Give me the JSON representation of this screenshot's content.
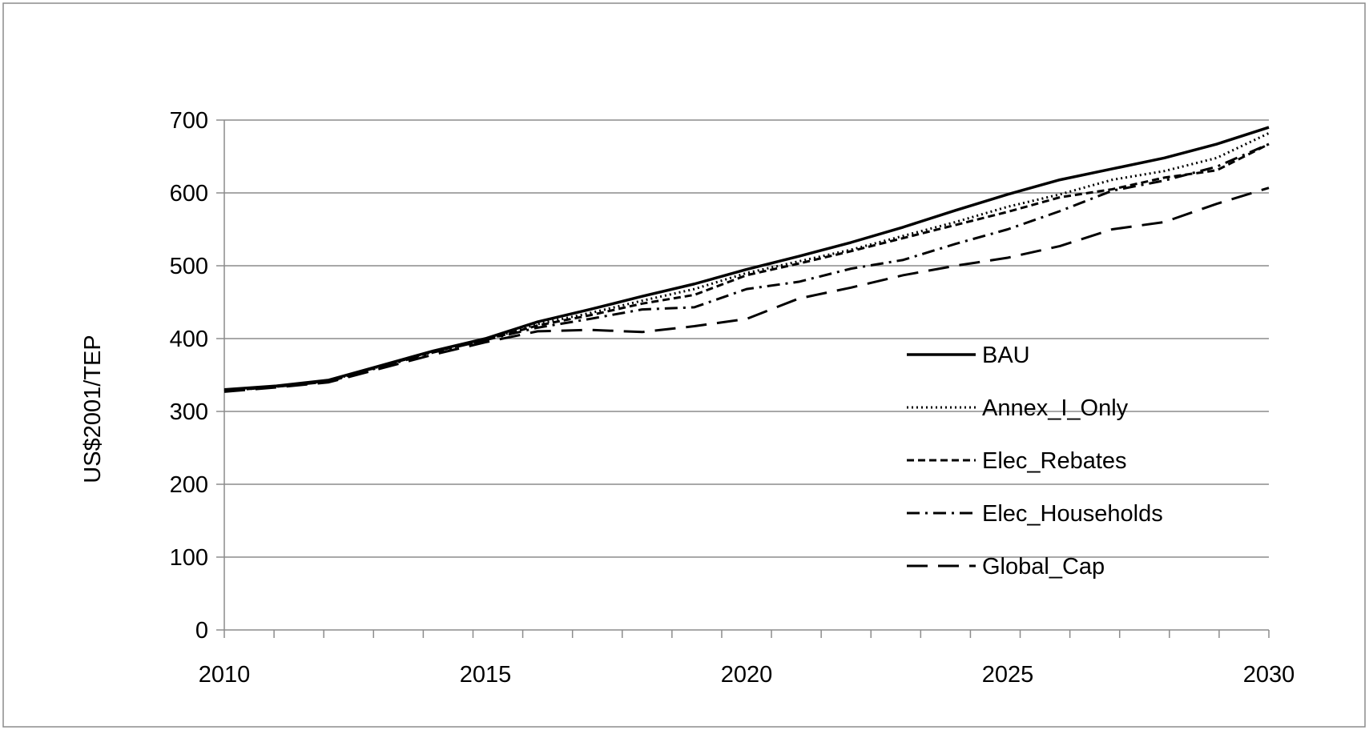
{
  "chart_data": {
    "type": "line",
    "title": "",
    "xlabel": "",
    "ylabel": "US$2001/TEP",
    "xlim": [
      2010,
      2030
    ],
    "ylim": [
      0,
      700
    ],
    "x_ticks": [
      "2010",
      "2015",
      "2020",
      "2025",
      "2030"
    ],
    "y_ticks": [
      "0",
      "100",
      "200",
      "300",
      "400",
      "500",
      "600",
      "700"
    ],
    "grid": "horizontal",
    "legend_position": "right-center",
    "x": [
      2010,
      2011,
      2012,
      2013,
      2014,
      2015,
      2016,
      2017,
      2018,
      2019,
      2020,
      2021,
      2022,
      2023,
      2024,
      2025,
      2026,
      2027,
      2028,
      2029,
      2030
    ],
    "series": [
      {
        "name": "BAU",
        "style": "solid",
        "values": [
          330,
          335,
          343,
          363,
          383,
          400,
          423,
          440,
          458,
          475,
          495,
          513,
          532,
          553,
          576,
          598,
          618,
          633,
          648,
          667,
          690
        ]
      },
      {
        "name": "Annex_I_Only",
        "style": "dotted",
        "values": [
          329,
          335,
          342,
          362,
          382,
          398,
          420,
          435,
          452,
          468,
          490,
          506,
          522,
          541,
          560,
          581,
          598,
          618,
          630,
          648,
          682
        ]
      },
      {
        "name": "Elec_Rebates",
        "style": "dashed",
        "values": [
          328,
          334,
          342,
          362,
          382,
          398,
          418,
          432,
          448,
          460,
          487,
          503,
          520,
          538,
          556,
          574,
          594,
          605,
          621,
          631,
          667
        ]
      },
      {
        "name": "Elec_Households",
        "style": "dash-dot",
        "values": [
          328,
          334,
          341,
          361,
          381,
          398,
          415,
          427,
          440,
          443,
          468,
          478,
          496,
          508,
          530,
          550,
          575,
          603,
          617,
          636,
          667
        ]
      },
      {
        "name": "Global_Cap",
        "style": "long-dash",
        "values": [
          327,
          333,
          340,
          359,
          378,
          395,
          410,
          412,
          409,
          417,
          427,
          455,
          470,
          487,
          500,
          511,
          527,
          550,
          560,
          585,
          607
        ]
      }
    ],
    "colors": {
      "lines": "#000000",
      "grid": "#8c8c8c",
      "axis": "#8c8c8c",
      "border": "#8c8c8c"
    }
  }
}
